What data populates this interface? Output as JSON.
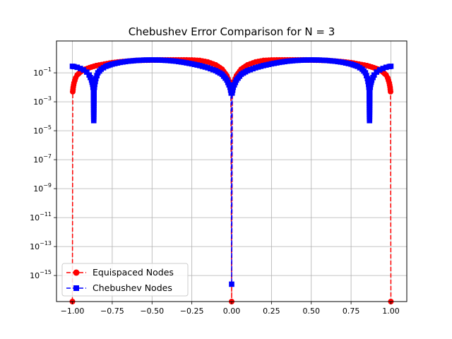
{
  "chart_data": {
    "type": "line",
    "title": "Chebushev Error Comparison for N = 3",
    "xlabel": "",
    "ylabel": "",
    "y_scale": "log",
    "grid": true,
    "xlim": [
      -1.1,
      1.1
    ],
    "ylim_log10": [
      -16.8,
      1.2
    ],
    "x_ticks": [
      -1.0,
      -0.75,
      -0.5,
      -0.25,
      0.0,
      0.25,
      0.5,
      0.75,
      1.0
    ],
    "x_tick_labels": [
      "−1.00",
      "−0.75",
      "−0.50",
      "−0.25",
      "0.00",
      "0.25",
      "0.50",
      "0.75",
      "1.00"
    ],
    "y_tick_exponents": [
      -15,
      -13,
      -11,
      -9,
      -7,
      -5,
      -3,
      -1
    ],
    "legend_position": "lower-left",
    "series": [
      {
        "name": "Equispaced Nodes",
        "color": "#ff0000",
        "marker": "circle",
        "line_style": "dashed",
        "x": [
          -1.0,
          -0.998,
          -0.995,
          -0.99,
          -0.98,
          -0.97,
          -0.95,
          -0.92,
          -0.88,
          -0.85,
          -0.8,
          -0.75,
          -0.7,
          -0.65,
          -0.6,
          -0.55,
          -0.5,
          -0.45,
          -0.4,
          -0.35,
          -0.3,
          -0.25,
          -0.2,
          -0.15,
          -0.1,
          -0.06,
          -0.03,
          -0.015,
          -0.005,
          0.0,
          0.005,
          0.015,
          0.03,
          0.06,
          0.1,
          0.15,
          0.2,
          0.25,
          0.3,
          0.35,
          0.4,
          0.45,
          0.5,
          0.55,
          0.6,
          0.65,
          0.7,
          0.75,
          0.8,
          0.85,
          0.88,
          0.92,
          0.95,
          0.97,
          0.98,
          0.99,
          0.995,
          0.998,
          1.0
        ],
        "y_log10": [
          -16.8,
          -2.3,
          -2.0,
          -1.7,
          -1.35,
          -1.15,
          -0.95,
          -0.75,
          -0.6,
          -0.5,
          -0.4,
          -0.3,
          -0.24,
          -0.19,
          -0.15,
          -0.13,
          -0.12,
          -0.11,
          -0.11,
          -0.11,
          -0.11,
          -0.12,
          -0.15,
          -0.25,
          -0.45,
          -0.75,
          -1.2,
          -1.6,
          -2.3,
          -16.8,
          -2.3,
          -1.6,
          -1.2,
          -0.75,
          -0.45,
          -0.25,
          -0.15,
          -0.12,
          -0.11,
          -0.11,
          -0.11,
          -0.11,
          -0.12,
          -0.13,
          -0.15,
          -0.19,
          -0.24,
          -0.3,
          -0.4,
          -0.5,
          -0.6,
          -0.75,
          -0.95,
          -1.15,
          -1.35,
          -1.7,
          -2.0,
          -2.3,
          -16.8
        ]
      },
      {
        "name": "Chebushev Nodes",
        "color": "#0000ff",
        "marker": "square",
        "line_style": "dashed",
        "x": [
          -1.0,
          -0.99,
          -0.97,
          -0.95,
          -0.93,
          -0.91,
          -0.895,
          -0.88,
          -0.873,
          -0.868,
          -0.866,
          -0.864,
          -0.86,
          -0.853,
          -0.84,
          -0.82,
          -0.79,
          -0.75,
          -0.7,
          -0.65,
          -0.6,
          -0.55,
          -0.5,
          -0.45,
          -0.4,
          -0.35,
          -0.3,
          -0.25,
          -0.2,
          -0.15,
          -0.1,
          -0.06,
          -0.03,
          -0.01,
          -0.003,
          0.0,
          0.003,
          0.01,
          0.03,
          0.06,
          0.1,
          0.15,
          0.2,
          0.25,
          0.3,
          0.35,
          0.4,
          0.45,
          0.5,
          0.55,
          0.6,
          0.65,
          0.7,
          0.75,
          0.79,
          0.82,
          0.84,
          0.853,
          0.86,
          0.864,
          0.866,
          0.868,
          0.873,
          0.88,
          0.895,
          0.91,
          0.93,
          0.95,
          0.97,
          0.99,
          1.0
        ],
        "y_log10": [
          -0.55,
          -0.57,
          -0.62,
          -0.7,
          -0.8,
          -0.95,
          -1.15,
          -1.5,
          -1.8,
          -2.2,
          -4.3,
          -2.2,
          -1.8,
          -1.4,
          -1.0,
          -0.75,
          -0.55,
          -0.4,
          -0.28,
          -0.2,
          -0.15,
          -0.12,
          -0.11,
          -0.12,
          -0.15,
          -0.2,
          -0.28,
          -0.38,
          -0.5,
          -0.65,
          -0.85,
          -1.1,
          -1.5,
          -2.0,
          -2.4,
          -15.6,
          -2.4,
          -2.0,
          -1.5,
          -1.1,
          -0.85,
          -0.65,
          -0.5,
          -0.38,
          -0.28,
          -0.2,
          -0.15,
          -0.12,
          -0.11,
          -0.12,
          -0.15,
          -0.2,
          -0.28,
          -0.4,
          -0.55,
          -0.75,
          -1.0,
          -1.4,
          -1.8,
          -2.2,
          -4.3,
          -2.2,
          -1.8,
          -1.5,
          -1.15,
          -0.95,
          -0.8,
          -0.7,
          -0.62,
          -0.57,
          -0.55
        ]
      }
    ]
  }
}
